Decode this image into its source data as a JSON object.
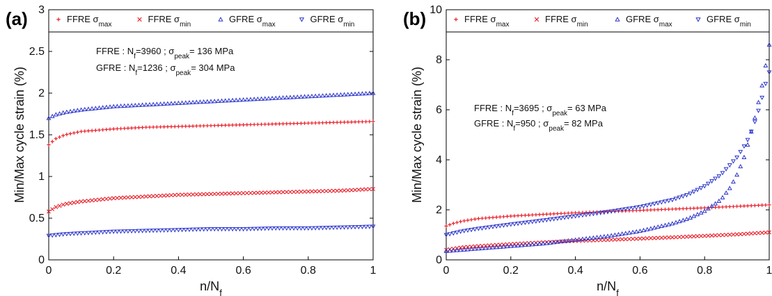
{
  "chart_data": [
    {
      "type": "scatter",
      "panel_label": "(a)",
      "xlabel_main": "n/N",
      "xlabel_sub": "f",
      "ylabel": "Min/Max cycle strain (%)",
      "xlim": [
        0,
        1
      ],
      "ylim": [
        0,
        3
      ],
      "xticks": [
        "0",
        "0.2",
        "0.4",
        "0.6",
        "0.8",
        "1"
      ],
      "yticks": [
        "0",
        "0.5",
        "1",
        "1.5",
        "2",
        "2.5",
        "3"
      ],
      "legend_placement": "top",
      "annotations": [
        {
          "mat": "FFRE : N",
          "nsub": "f",
          "n": "=3960 ; σ",
          "ssub": "peak",
          "tail": "= 136 MPa"
        },
        {
          "mat": "GFRE : N",
          "nsub": "f",
          "n": "=1236 ; σ",
          "ssub": "peak",
          "tail": "= 304 MPa"
        }
      ],
      "series": [
        {
          "name": "FFRE σ",
          "sub": "max",
          "color": "#e8212b",
          "marker": "plus",
          "x": [
            0,
            0.02,
            0.05,
            0.1,
            0.2,
            0.3,
            0.4,
            0.5,
            0.6,
            0.7,
            0.8,
            0.9,
            1.0
          ],
          "y": [
            1.38,
            1.45,
            1.5,
            1.54,
            1.57,
            1.59,
            1.6,
            1.61,
            1.62,
            1.63,
            1.64,
            1.65,
            1.66
          ]
        },
        {
          "name": "FFRE σ",
          "sub": "min",
          "color": "#e8212b",
          "marker": "x",
          "x": [
            0,
            0.02,
            0.05,
            0.1,
            0.2,
            0.3,
            0.4,
            0.5,
            0.6,
            0.7,
            0.8,
            0.9,
            1.0
          ],
          "y": [
            0.58,
            0.63,
            0.67,
            0.7,
            0.74,
            0.76,
            0.78,
            0.79,
            0.8,
            0.81,
            0.82,
            0.83,
            0.85
          ]
        },
        {
          "name": "GFRE σ",
          "sub": "max",
          "color": "#2b34c9",
          "marker": "triangle-up",
          "x": [
            0,
            0.02,
            0.05,
            0.1,
            0.2,
            0.3,
            0.4,
            0.5,
            0.6,
            0.7,
            0.8,
            0.9,
            1.0
          ],
          "y": [
            1.7,
            1.74,
            1.77,
            1.8,
            1.84,
            1.86,
            1.88,
            1.9,
            1.92,
            1.94,
            1.96,
            1.98,
            2.0
          ]
        },
        {
          "name": "GFRE σ",
          "sub": "min",
          "color": "#2b34c9",
          "marker": "triangle-down",
          "x": [
            0,
            0.05,
            0.1,
            0.2,
            0.3,
            0.4,
            0.5,
            0.6,
            0.7,
            0.8,
            0.9,
            1.0
          ],
          "y": [
            0.29,
            0.31,
            0.32,
            0.34,
            0.35,
            0.36,
            0.37,
            0.37,
            0.38,
            0.38,
            0.39,
            0.4
          ]
        }
      ]
    },
    {
      "type": "scatter",
      "panel_label": "(b)",
      "xlabel_main": "n/N",
      "xlabel_sub": "f",
      "ylabel": "Min/Max cycle strain (%)",
      "xlim": [
        0,
        1
      ],
      "ylim": [
        0,
        10
      ],
      "xticks": [
        "0",
        "0.2",
        "0.4",
        "0.6",
        "0.8",
        "1"
      ],
      "yticks": [
        "0",
        "2",
        "4",
        "6",
        "8",
        "10"
      ],
      "legend_placement": "top",
      "annotations": [
        {
          "mat": "FFRE : N",
          "nsub": "f",
          "n": "=3695 ; σ",
          "ssub": "peak",
          "tail": "= 63 MPa"
        },
        {
          "mat": "GFRE : N",
          "nsub": "f",
          "n": "=950 ; σ",
          "ssub": "peak",
          "tail": "= 82 MPa"
        }
      ],
      "series": [
        {
          "name": "FFRE σ",
          "sub": "max",
          "color": "#e8212b",
          "marker": "plus",
          "x": [
            0,
            0.02,
            0.05,
            0.1,
            0.2,
            0.3,
            0.4,
            0.5,
            0.6,
            0.7,
            0.8,
            0.9,
            1.0
          ],
          "y": [
            1.35,
            1.45,
            1.55,
            1.65,
            1.75,
            1.82,
            1.88,
            1.93,
            1.98,
            2.03,
            2.08,
            2.14,
            2.2
          ]
        },
        {
          "name": "FFRE σ",
          "sub": "min",
          "color": "#e8212b",
          "marker": "x",
          "x": [
            0,
            0.05,
            0.1,
            0.2,
            0.3,
            0.4,
            0.5,
            0.6,
            0.7,
            0.8,
            0.9,
            1.0
          ],
          "y": [
            0.4,
            0.5,
            0.55,
            0.63,
            0.7,
            0.76,
            0.8,
            0.85,
            0.9,
            0.96,
            1.02,
            1.1
          ]
        },
        {
          "name": "GFRE σ",
          "sub": "max",
          "color": "#2b34c9",
          "marker": "triangle-up",
          "x": [
            0,
            0.1,
            0.2,
            0.3,
            0.4,
            0.5,
            0.6,
            0.7,
            0.75,
            0.8,
            0.85,
            0.88,
            0.9,
            0.92,
            0.94,
            0.96,
            0.98,
            1.0
          ],
          "y": [
            0.35,
            0.45,
            0.55,
            0.65,
            0.8,
            0.95,
            1.15,
            1.45,
            1.65,
            1.95,
            2.4,
            2.9,
            3.4,
            4.0,
            4.9,
            5.9,
            7.1,
            8.6
          ]
        },
        {
          "name": "GFRE σ",
          "sub": "min",
          "color": "#2b34c9",
          "marker": "triangle-down",
          "x": [
            0,
            0.05,
            0.1,
            0.2,
            0.3,
            0.4,
            0.5,
            0.6,
            0.7,
            0.75,
            0.8,
            0.85,
            0.9,
            0.93,
            0.95,
            0.97,
            0.99,
            1.0
          ],
          "y": [
            1.0,
            1.15,
            1.25,
            1.42,
            1.58,
            1.75,
            1.92,
            2.12,
            2.4,
            2.62,
            2.95,
            3.4,
            4.1,
            4.7,
            5.3,
            6.1,
            7.1,
            7.5
          ]
        }
      ]
    }
  ]
}
